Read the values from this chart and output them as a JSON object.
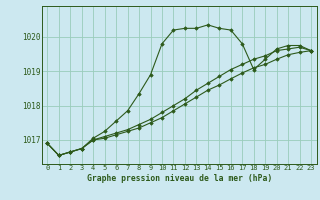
{
  "background_color": "#cce8f0",
  "grid_color": "#99ccbb",
  "line_color": "#2d5a1b",
  "title": "Graphe pression niveau de la mer (hPa)",
  "xlim": [
    -0.5,
    23.5
  ],
  "ylim": [
    1016.3,
    1020.9
  ],
  "yticks": [
    1017,
    1018,
    1019,
    1020
  ],
  "xticks": [
    0,
    1,
    2,
    3,
    4,
    5,
    6,
    7,
    8,
    9,
    10,
    11,
    12,
    13,
    14,
    15,
    16,
    17,
    18,
    19,
    20,
    21,
    22,
    23
  ],
  "series1": {
    "x": [
      0,
      1,
      2,
      3,
      4,
      5,
      6,
      7,
      8,
      9,
      10,
      11,
      12,
      13,
      14,
      15,
      16,
      17,
      18,
      19,
      20,
      21,
      22,
      23
    ],
    "y": [
      1016.9,
      1016.55,
      1016.65,
      1016.75,
      1017.05,
      1017.25,
      1017.55,
      1017.85,
      1018.35,
      1018.9,
      1019.8,
      1020.2,
      1020.25,
      1020.25,
      1020.35,
      1020.25,
      1020.2,
      1019.8,
      1019.05,
      1019.35,
      1019.65,
      1019.75,
      1019.75,
      1019.6
    ]
  },
  "series2": {
    "x": [
      0,
      1,
      2,
      3,
      4,
      5,
      6,
      7,
      8,
      9,
      10,
      11,
      12,
      13,
      14,
      15,
      16,
      17,
      18,
      19,
      20,
      21,
      22,
      23
    ],
    "y": [
      1016.9,
      1016.55,
      1016.65,
      1016.75,
      1017.0,
      1017.1,
      1017.2,
      1017.3,
      1017.45,
      1017.6,
      1017.8,
      1018.0,
      1018.2,
      1018.45,
      1018.65,
      1018.85,
      1019.05,
      1019.2,
      1019.35,
      1019.45,
      1019.6,
      1019.65,
      1019.7,
      1019.6
    ]
  },
  "series3": {
    "x": [
      0,
      1,
      2,
      3,
      4,
      5,
      6,
      7,
      8,
      9,
      10,
      11,
      12,
      13,
      14,
      15,
      16,
      17,
      18,
      19,
      20,
      21,
      22,
      23
    ],
    "y": [
      1016.9,
      1016.55,
      1016.65,
      1016.75,
      1017.0,
      1017.05,
      1017.15,
      1017.25,
      1017.35,
      1017.5,
      1017.65,
      1017.85,
      1018.05,
      1018.25,
      1018.45,
      1018.6,
      1018.78,
      1018.95,
      1019.1,
      1019.2,
      1019.35,
      1019.48,
      1019.55,
      1019.6
    ]
  },
  "title_fontsize": 5.8,
  "tick_fontsize": 5.0
}
